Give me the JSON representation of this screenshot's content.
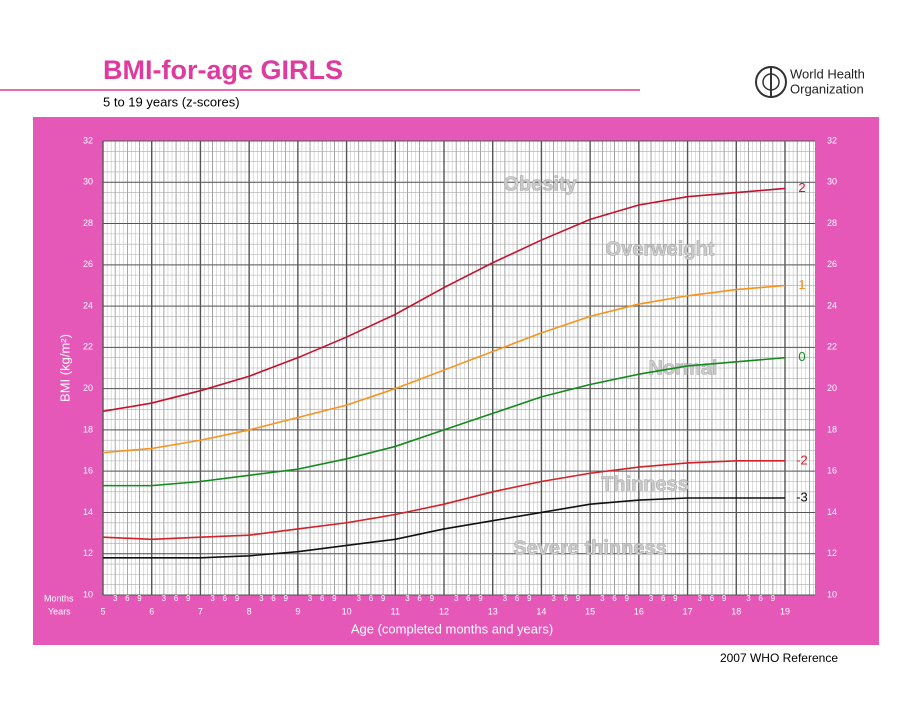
{
  "chart_data": {
    "type": "line",
    "title": "BMI-for-age  GIRLS",
    "subtitle": "5 to 19 years (z-scores)",
    "organization": [
      "World Health",
      "Organization"
    ],
    "footer": "2007 WHO Reference",
    "y_label": "BMI (kg/m²)",
    "x_label": "Age (completed months and years)",
    "months_label": "Months",
    "years_label": "Years",
    "month_labels": [
      "3",
      "6",
      "9"
    ],
    "zones": [
      "Obesity",
      "Overweight",
      "Normal",
      "Thinness",
      "Severe thinness"
    ],
    "x": [
      5,
      6,
      7,
      8,
      9,
      10,
      11,
      12,
      13,
      14,
      15,
      16,
      17,
      18,
      19
    ],
    "xlim": [
      5,
      19
    ],
    "xticks": [
      5,
      6,
      7,
      8,
      9,
      10,
      11,
      12,
      13,
      14,
      15,
      16,
      17,
      18,
      19
    ],
    "ylim": [
      10,
      32
    ],
    "yticks": [
      10,
      12,
      14,
      16,
      18,
      20,
      22,
      24,
      26,
      28,
      30,
      32
    ],
    "grid": true,
    "series": [
      {
        "name": "2",
        "color": "#c4122f",
        "values": [
          18.9,
          19.3,
          19.9,
          20.6,
          21.5,
          22.5,
          23.6,
          24.9,
          26.1,
          27.2,
          28.2,
          28.9,
          29.3,
          29.5,
          29.7
        ]
      },
      {
        "name": "1",
        "color": "#f7931e",
        "values": [
          16.9,
          17.1,
          17.5,
          18.0,
          18.6,
          19.2,
          20.0,
          20.9,
          21.8,
          22.7,
          23.5,
          24.1,
          24.5,
          24.8,
          25.0
        ]
      },
      {
        "name": "0",
        "color": "#138a1d",
        "values": [
          15.3,
          15.3,
          15.5,
          15.8,
          16.1,
          16.6,
          17.2,
          18.0,
          18.8,
          19.6,
          20.2,
          20.7,
          21.1,
          21.3,
          21.5
        ]
      },
      {
        "name": "-2",
        "color": "#d2232a",
        "values": [
          12.8,
          12.7,
          12.8,
          12.9,
          13.2,
          13.5,
          13.9,
          14.4,
          15.0,
          15.5,
          15.9,
          16.2,
          16.4,
          16.5,
          16.5
        ]
      },
      {
        "name": "-3",
        "color": "#111111",
        "values": [
          11.8,
          11.8,
          11.8,
          11.9,
          12.1,
          12.4,
          12.7,
          13.2,
          13.6,
          14.0,
          14.4,
          14.6,
          14.7,
          14.7,
          14.7
        ]
      }
    ]
  }
}
